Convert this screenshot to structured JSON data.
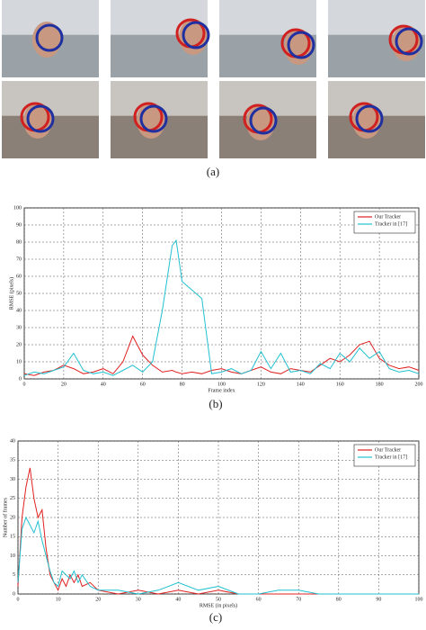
{
  "captions": [
    "(a)",
    "(b)",
    "(c)"
  ],
  "chart_data": [
    {
      "type": "line",
      "x_label": "Frame index",
      "y_label": "RMSE (pixels)",
      "x": [
        0,
        5,
        10,
        15,
        20,
        25,
        30,
        35,
        40,
        45,
        50,
        55,
        60,
        65,
        70,
        75,
        77,
        80,
        85,
        90,
        95,
        100,
        105,
        110,
        115,
        120,
        125,
        130,
        135,
        140,
        145,
        150,
        155,
        160,
        165,
        170,
        175,
        180,
        185,
        190,
        195,
        200
      ],
      "series": [
        {
          "name": "Our Tracker",
          "color": "#e02020",
          "values": [
            3,
            2,
            4,
            5,
            8,
            6,
            3,
            4,
            6,
            3,
            10,
            25,
            14,
            8,
            4,
            5,
            4,
            3,
            4,
            3,
            5,
            6,
            4,
            3,
            5,
            7,
            4,
            3,
            6,
            5,
            4,
            8,
            12,
            10,
            14,
            20,
            22,
            12,
            8,
            6,
            7,
            5
          ]
        },
        {
          "name": "Tracker in [17]",
          "color": "#20c0d0",
          "values": [
            2,
            4,
            3,
            5,
            7,
            15,
            5,
            3,
            4,
            2,
            5,
            8,
            4,
            10,
            40,
            78,
            81,
            57,
            52,
            47,
            3,
            4,
            6,
            3,
            5,
            16,
            6,
            15,
            4,
            5,
            3,
            9,
            6,
            15,
            10,
            18,
            12,
            16,
            6,
            4,
            5,
            3
          ]
        }
      ],
      "xlim": [
        0,
        200
      ],
      "xticks": [
        0,
        20,
        40,
        60,
        80,
        100,
        120,
        140,
        160,
        180,
        200
      ],
      "ylim": [
        0,
        100
      ],
      "yticks": [
        0,
        10,
        20,
        30,
        40,
        50,
        60,
        70,
        80,
        90,
        100
      ],
      "grid": true,
      "legend": "top-right"
    },
    {
      "type": "line",
      "x_label": "RMSE (in pixels)",
      "y_label": "Number of frames",
      "x": [
        0,
        1,
        2,
        3,
        4,
        5,
        6,
        7,
        8,
        9,
        10,
        11,
        12,
        13,
        14,
        15,
        16,
        18,
        20,
        25,
        30,
        35,
        40,
        45,
        50,
        55,
        60,
        65,
        70,
        75,
        80,
        85,
        90,
        95,
        100
      ],
      "series": [
        {
          "name": "Our Tracker",
          "color": "#e02020",
          "values": [
            2,
            20,
            28,
            33,
            25,
            20,
            22,
            12,
            5,
            3,
            1,
            4,
            2,
            5,
            3,
            5,
            2,
            3,
            1,
            0,
            1,
            0,
            1,
            0,
            1,
            0,
            0,
            0,
            0,
            0,
            0,
            0,
            0,
            0,
            0
          ]
        },
        {
          "name": "Tracker in [17]",
          "color": "#20c0d0",
          "values": [
            3,
            17,
            20,
            18,
            16,
            19,
            14,
            10,
            6,
            3,
            2,
            6,
            5,
            4,
            6,
            3,
            5,
            2,
            1,
            1,
            0,
            1,
            3,
            1,
            2,
            0,
            0,
            1,
            1,
            0,
            0,
            0,
            0,
            0,
            0
          ]
        }
      ],
      "xlim": [
        0,
        100
      ],
      "xticks": [
        0,
        10,
        20,
        30,
        40,
        50,
        60,
        70,
        80,
        90,
        100
      ],
      "ylim": [
        0,
        40
      ],
      "yticks": [
        0,
        5,
        10,
        15,
        20,
        25,
        30,
        35,
        40
      ],
      "grid": true,
      "legend": "top-right"
    }
  ]
}
